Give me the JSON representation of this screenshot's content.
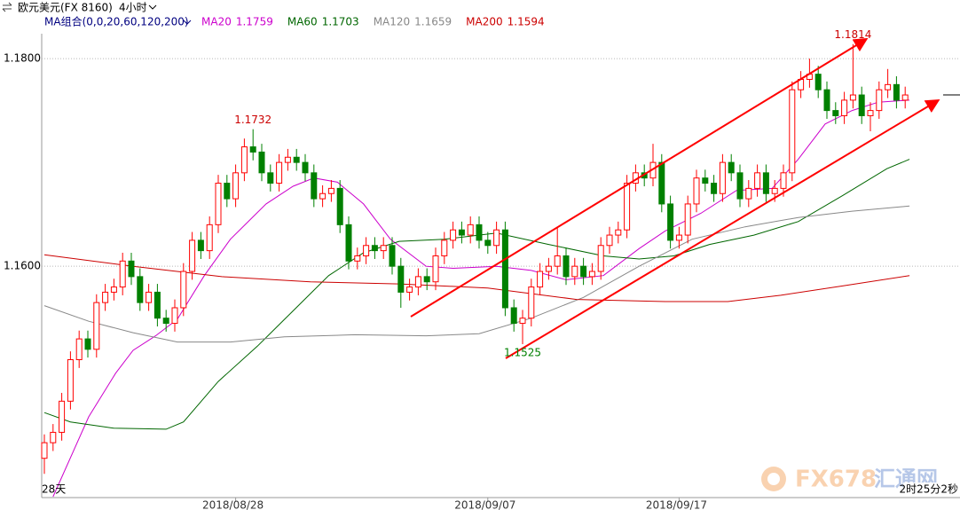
{
  "chart_data": {
    "type": "candlestick",
    "title": "欧元美元(FX 8160)",
    "period": "4小时",
    "ma_group": "MA组合(0,0,20,60,120,200)",
    "footer_left": "28天",
    "footer_right": "2时25分2秒",
    "watermark": [
      "FX678",
      "汇通网"
    ],
    "up_color": "#ff0000",
    "down_color": "#008000",
    "ylim": [
      1.1378,
      1.1824
    ],
    "yticks": [
      {
        "value": 1.18,
        "label": "1.1800"
      },
      {
        "value": 1.16,
        "label": "1.1600"
      }
    ],
    "grid": true,
    "categories": [
      null,
      null,
      null,
      null,
      null,
      null,
      null,
      null,
      null,
      null,
      null,
      null,
      null,
      null,
      null,
      null,
      null,
      null,
      null,
      null,
      null,
      null,
      "2018/08/28",
      null,
      null,
      null,
      null,
      null,
      null,
      null,
      null,
      null,
      null,
      null,
      null,
      null,
      null,
      null,
      null,
      null,
      null,
      null,
      null,
      null,
      null,
      null,
      null,
      null,
      null,
      null,
      null,
      "2018/09/07",
      null,
      null,
      null,
      null,
      null,
      null,
      null,
      null,
      null,
      null,
      null,
      null,
      null,
      null,
      null,
      null,
      null,
      null,
      null,
      null,
      null,
      "2018/09/17",
      null,
      null,
      null,
      null,
      null,
      null,
      null,
      null,
      null,
      null,
      null,
      null,
      null,
      null,
      null,
      null,
      null,
      null,
      null,
      null,
      null,
      null,
      null,
      null,
      null,
      null
    ],
    "open": [
      1.1415,
      1.143,
      1.144,
      1.147,
      1.151,
      1.153,
      1.152,
      1.1565,
      1.1575,
      1.158,
      1.1605,
      1.159,
      1.1565,
      1.1575,
      1.155,
      1.1545,
      1.156,
      1.1595,
      1.1625,
      1.1615,
      1.164,
      1.168,
      1.1665,
      1.169,
      1.1715,
      1.171,
      1.169,
      1.168,
      1.17,
      1.1705,
      1.17,
      1.169,
      1.1665,
      1.167,
      1.1675,
      1.164,
      1.1605,
      1.161,
      1.162,
      1.1615,
      1.162,
      1.16,
      1.1575,
      1.158,
      1.159,
      1.1585,
      1.161,
      1.1625,
      1.1635,
      1.163,
      1.164,
      1.1625,
      1.162,
      1.1635,
      1.156,
      1.1545,
      1.155,
      1.158,
      1.1595,
      1.16,
      1.161,
      1.159,
      1.16,
      1.159,
      1.1595,
      1.162,
      1.163,
      1.1635,
      1.168,
      1.169,
      1.1685,
      1.17,
      1.166,
      1.1625,
      1.163,
      1.166,
      1.1685,
      1.168,
      1.167,
      1.17,
      1.169,
      1.1665,
      1.1675,
      1.169,
      1.167,
      1.1675,
      1.169,
      1.177,
      1.178,
      1.1785,
      1.177,
      1.175,
      1.1745,
      1.176,
      1.1765,
      1.1745,
      1.175,
      1.177,
      1.1775,
      1.176
    ],
    "high": [
      1.1438,
      1.1448,
      1.1478,
      1.1518,
      1.1538,
      1.1538,
      1.1573,
      1.1583,
      1.1588,
      1.1613,
      1.1613,
      1.1598,
      1.1583,
      1.1583,
      1.1558,
      1.1568,
      1.1603,
      1.1633,
      1.1633,
      1.1648,
      1.1688,
      1.1688,
      1.1698,
      1.1723,
      1.1732,
      1.1718,
      1.1698,
      1.1708,
      1.1713,
      1.1713,
      1.1708,
      1.1698,
      1.1678,
      1.1683,
      1.1683,
      1.1648,
      1.1618,
      1.1628,
      1.1628,
      1.1628,
      1.1628,
      1.1608,
      1.1588,
      1.1598,
      1.1598,
      1.1618,
      1.1633,
      1.1643,
      1.1643,
      1.1648,
      1.1648,
      1.1633,
      1.1643,
      1.1643,
      1.1568,
      1.1558,
      1.1588,
      1.1603,
      1.1608,
      1.1638,
      1.1618,
      1.1608,
      1.1608,
      1.1603,
      1.1628,
      1.1638,
      1.1643,
      1.1688,
      1.1698,
      1.1698,
      1.1718,
      1.1708,
      1.1668,
      1.1638,
      1.1668,
      1.1693,
      1.1693,
      1.1688,
      1.1708,
      1.1708,
      1.1698,
      1.1683,
      1.1698,
      1.1698,
      1.1683,
      1.1698,
      1.1778,
      1.1788,
      1.18,
      1.1793,
      1.1778,
      1.1758,
      1.1768,
      1.1814,
      1.1773,
      1.1758,
      1.1778,
      1.179,
      1.1783,
      1.1773
    ],
    "low": [
      1.14,
      1.1422,
      1.1432,
      1.1462,
      1.1502,
      1.1512,
      1.1512,
      1.1557,
      1.1567,
      1.1572,
      1.1582,
      1.1557,
      1.1557,
      1.1542,
      1.1537,
      1.1537,
      1.1552,
      1.1587,
      1.1607,
      1.1607,
      1.1632,
      1.1657,
      1.1657,
      1.1682,
      1.1702,
      1.1682,
      1.1672,
      1.1672,
      1.1692,
      1.1692,
      1.1682,
      1.1657,
      1.1657,
      1.1662,
      1.1632,
      1.1597,
      1.1597,
      1.1602,
      1.1607,
      1.1607,
      1.1592,
      1.156,
      1.1567,
      1.1572,
      1.1577,
      1.1577,
      1.1602,
      1.1617,
      1.1622,
      1.1622,
      1.1617,
      1.1612,
      1.1612,
      1.1552,
      1.1537,
      1.1525,
      1.1542,
      1.1572,
      1.1587,
      1.1592,
      1.1582,
      1.1582,
      1.1582,
      1.1582,
      1.1587,
      1.1612,
      1.1622,
      1.1627,
      1.1672,
      1.1677,
      1.1677,
      1.1652,
      1.1617,
      1.1617,
      1.1622,
      1.1652,
      1.1672,
      1.1662,
      1.1662,
      1.1682,
      1.1657,
      1.1657,
      1.1667,
      1.1662,
      1.1662,
      1.1667,
      1.1682,
      1.1762,
      1.1772,
      1.1762,
      1.1742,
      1.1737,
      1.1737,
      1.1752,
      1.1737,
      1.173,
      1.1742,
      1.1762,
      1.1752,
      1.1752
    ],
    "close": [
      1.143,
      1.144,
      1.147,
      1.151,
      1.153,
      1.152,
      1.1565,
      1.1575,
      1.158,
      1.1605,
      1.159,
      1.1565,
      1.1575,
      1.155,
      1.1545,
      1.156,
      1.1595,
      1.1625,
      1.1615,
      1.164,
      1.168,
      1.1665,
      1.169,
      1.1715,
      1.171,
      1.169,
      1.168,
      1.17,
      1.1705,
      1.17,
      1.169,
      1.1665,
      1.167,
      1.1675,
      1.164,
      1.1605,
      1.161,
      1.162,
      1.1615,
      1.162,
      1.16,
      1.1575,
      1.158,
      1.159,
      1.1585,
      1.161,
      1.1625,
      1.1635,
      1.163,
      1.164,
      1.1625,
      1.162,
      1.1635,
      1.156,
      1.1545,
      1.155,
      1.158,
      1.1595,
      1.16,
      1.161,
      1.159,
      1.16,
      1.159,
      1.1595,
      1.162,
      1.163,
      1.1635,
      1.168,
      1.169,
      1.1685,
      1.17,
      1.166,
      1.1625,
      1.163,
      1.166,
      1.1685,
      1.168,
      1.167,
      1.17,
      1.169,
      1.1665,
      1.1675,
      1.169,
      1.167,
      1.1675,
      1.169,
      1.177,
      1.178,
      1.1785,
      1.177,
      1.175,
      1.1745,
      1.176,
      1.1765,
      1.1745,
      1.175,
      1.177,
      1.1775,
      1.176,
      1.1765
    ],
    "annotations": [
      {
        "text": "1.1732",
        "color": "#cc0000"
      },
      {
        "text": "1.1525",
        "color": "#008000"
      },
      {
        "text": "1.1814",
        "color": "#cc0000"
      }
    ],
    "series": [
      {
        "name": "MA20",
        "last": 1.1759,
        "color": "#cc00cc",
        "x": [
          1,
          5.1,
          8.2,
          10.2,
          12.8,
          15.3,
          18.4,
          21.4,
          25.5,
          28.6,
          31,
          33.7,
          36.7,
          39.8,
          43.9,
          47,
          52,
          56,
          60,
          64.3,
          68.4,
          71.4,
          75.5,
          79.6,
          83.7,
          86.7,
          89.8,
          92.9,
          95.9,
          99.5
        ],
        "values": [
          1.1378,
          1.1455,
          1.1497,
          1.1519,
          1.1533,
          1.1549,
          1.1591,
          1.1626,
          1.166,
          1.1677,
          1.1685,
          1.1681,
          1.166,
          1.1626,
          1.16,
          1.1598,
          1.16,
          1.1596,
          1.1587,
          1.1591,
          1.1617,
          1.1634,
          1.1651,
          1.1673,
          1.1675,
          1.1703,
          1.1737,
          1.175,
          1.1758,
          1.176
        ]
      },
      {
        "name": "MA60",
        "last": 1.1703,
        "color": "#006600",
        "x": [
          0,
          3,
          8,
          14,
          16,
          20,
          24.5,
          28.6,
          32.7,
          36.7,
          40.8,
          46,
          52,
          58,
          64.3,
          68.4,
          72.4,
          76.5,
          81.6,
          86.7,
          91.8,
          96.9,
          99.5
        ],
        "values": [
          1.1459,
          1.145,
          1.1444,
          1.1443,
          1.145,
          1.1489,
          1.1523,
          1.1557,
          1.1591,
          1.1613,
          1.1624,
          1.1626,
          1.1632,
          1.1621,
          1.161,
          1.1607,
          1.161,
          1.1621,
          1.163,
          1.1643,
          1.1668,
          1.1694,
          1.1703
        ]
      },
      {
        "name": "MA120",
        "last": 1.1659,
        "color": "#888888",
        "x": [
          0,
          5.1,
          10.2,
          15.3,
          21.4,
          27.6,
          35.7,
          43.9,
          50,
          56,
          62,
          68.4,
          74.5,
          80.6,
          86.7,
          92.9,
          99.5
        ],
        "values": [
          1.1562,
          1.1547,
          1.1536,
          1.1527,
          1.1527,
          1.1532,
          1.1534,
          1.1533,
          1.1535,
          1.155,
          1.157,
          1.16,
          1.1626,
          1.1638,
          1.1647,
          1.1653,
          1.1658
        ]
      },
      {
        "name": "MA200",
        "last": 1.1594,
        "color": "#cc0000",
        "x": [
          0,
          10.2,
          20.4,
          30.6,
          40.8,
          51,
          61.2,
          71.4,
          78.6,
          84.7,
          91.8,
          99.5
        ],
        "values": [
          1.1611,
          1.16,
          1.159,
          1.1585,
          1.1583,
          1.1579,
          1.1568,
          1.1566,
          1.1566,
          1.1572,
          1.1581,
          1.1591
        ]
      }
    ]
  }
}
